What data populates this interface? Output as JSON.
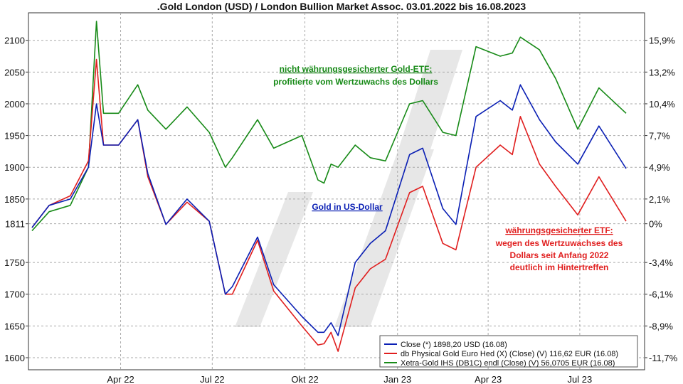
{
  "chart_data": {
    "type": "line",
    "title": ".Gold London (USD) / London Bullion Market Assoc. 03.01.2022 bis 16.08.2023",
    "xlabel": "",
    "ylabel": "",
    "ylim": [
      1590,
      2135
    ],
    "grid": true,
    "legend_position": "bottom-right",
    "x_tick_labels": [
      "Apr 22",
      "Jul 22",
      "Okt 22",
      "Jan 23",
      "Apr 23",
      "Jul 23"
    ],
    "y_ticks_left": [
      "2100",
      "2050",
      "2000",
      "1950",
      "1900",
      "1850",
      "1811",
      "1750",
      "1700",
      "1650",
      "1600"
    ],
    "y_ticks_right": [
      "15,9%",
      "13,2%",
      "10,4%",
      "7,7%",
      "4,9%",
      "2,1%",
      "0%",
      "-3,4%",
      "-6,1%",
      "-8,9%",
      "-11,7%"
    ],
    "x_range": [
      "2022-01-03",
      "2023-08-16"
    ],
    "series": [
      {
        "name": "Close (*) 1898,20 USD (16.08)",
        "color": "#0a1fb4",
        "x": [
          "2022-01-03",
          "2022-01-20",
          "2022-02-10",
          "2022-02-28",
          "2022-03-08",
          "2022-03-15",
          "2022-03-30",
          "2022-04-18",
          "2022-04-28",
          "2022-05-16",
          "2022-06-06",
          "2022-06-28",
          "2022-07-14",
          "2022-07-21",
          "2022-08-15",
          "2022-08-31",
          "2022-09-28",
          "2022-10-14",
          "2022-10-20",
          "2022-10-27",
          "2022-11-03",
          "2022-11-20",
          "2022-12-05",
          "2022-12-20",
          "2023-01-13",
          "2023-01-26",
          "2023-02-15",
          "2023-02-28",
          "2023-03-20",
          "2023-04-13",
          "2023-04-25",
          "2023-05-03",
          "2023-05-22",
          "2023-06-07",
          "2023-06-29",
          "2023-07-20",
          "2023-08-16"
        ],
        "y": [
          1805,
          1840,
          1850,
          1900,
          2000,
          1935,
          1935,
          1975,
          1890,
          1810,
          1850,
          1815,
          1700,
          1712,
          1790,
          1715,
          1665,
          1640,
          1640,
          1655,
          1635,
          1750,
          1780,
          1800,
          1920,
          1930,
          1835,
          1810,
          1980,
          2005,
          1990,
          2030,
          1975,
          1940,
          1905,
          1965,
          1898
        ]
      },
      {
        "name": "db Physical Gold Euro Hed (X) (Close) (V) 116,62 EUR (16.08)",
        "color": "#e01e1e",
        "x": [
          "2022-01-03",
          "2022-01-20",
          "2022-02-10",
          "2022-02-28",
          "2022-03-08",
          "2022-03-15",
          "2022-03-30",
          "2022-04-18",
          "2022-04-28",
          "2022-05-16",
          "2022-06-06",
          "2022-06-28",
          "2022-07-14",
          "2022-07-21",
          "2022-08-15",
          "2022-08-31",
          "2022-09-28",
          "2022-10-14",
          "2022-10-20",
          "2022-10-27",
          "2022-11-03",
          "2022-11-20",
          "2022-12-05",
          "2022-12-20",
          "2023-01-13",
          "2023-01-26",
          "2023-02-15",
          "2023-02-28",
          "2023-03-20",
          "2023-04-13",
          "2023-04-25",
          "2023-05-03",
          "2023-05-22",
          "2023-06-07",
          "2023-06-29",
          "2023-07-20",
          "2023-08-16"
        ],
        "y": [
          1805,
          1840,
          1855,
          1910,
          2070,
          1935,
          1935,
          1975,
          1885,
          1810,
          1845,
          1815,
          1700,
          1700,
          1785,
          1705,
          1650,
          1620,
          1622,
          1640,
          1610,
          1710,
          1740,
          1755,
          1860,
          1870,
          1780,
          1770,
          1900,
          1935,
          1920,
          1980,
          1905,
          1870,
          1825,
          1885,
          1815
        ]
      },
      {
        "name": "Xetra-Gold IHS (DB1C) endl (Close) (V) 56,0705 EUR (16.08)",
        "color": "#178a17",
        "x": [
          "2022-01-03",
          "2022-01-20",
          "2022-02-10",
          "2022-02-28",
          "2022-03-08",
          "2022-03-15",
          "2022-03-30",
          "2022-04-18",
          "2022-04-28",
          "2022-05-16",
          "2022-06-06",
          "2022-06-28",
          "2022-07-14",
          "2022-07-21",
          "2022-08-15",
          "2022-08-31",
          "2022-09-28",
          "2022-10-14",
          "2022-10-20",
          "2022-10-27",
          "2022-11-03",
          "2022-11-20",
          "2022-12-05",
          "2022-12-20",
          "2023-01-13",
          "2023-01-26",
          "2023-02-15",
          "2023-02-28",
          "2023-03-20",
          "2023-04-13",
          "2023-04-25",
          "2023-05-03",
          "2023-05-22",
          "2023-06-07",
          "2023-06-29",
          "2023-07-20",
          "2023-08-16"
        ],
        "y": [
          1800,
          1830,
          1840,
          1900,
          2130,
          1985,
          1985,
          2030,
          1990,
          1960,
          1995,
          1955,
          1900,
          1915,
          1975,
          1930,
          1950,
          1880,
          1875,
          1905,
          1900,
          1935,
          1915,
          1910,
          2000,
          2005,
          1955,
          1950,
          2090,
          2075,
          2080,
          2105,
          2085,
          2040,
          1960,
          2025,
          1985
        ]
      }
    ],
    "annotations": [
      {
        "text": "nicht währungsgesicherter Gold-ETF:",
        "color": "#178a17"
      },
      {
        "text": "profitierte vom Wertzuwachs des Dollars",
        "color": "#178a17"
      },
      {
        "text": "Gold in US-Dollar",
        "color": "#0a1fb4"
      },
      {
        "text": "währungsgesicherter ETF:",
        "color": "#e01e1e"
      },
      {
        "text": "wegen des Wertzuwachses des",
        "color": "#e01e1e"
      },
      {
        "text": "Dollars seit Anfang 2022",
        "color": "#e01e1e"
      },
      {
        "text": "deutlich im Hintertreffen",
        "color": "#e01e1e"
      }
    ]
  }
}
